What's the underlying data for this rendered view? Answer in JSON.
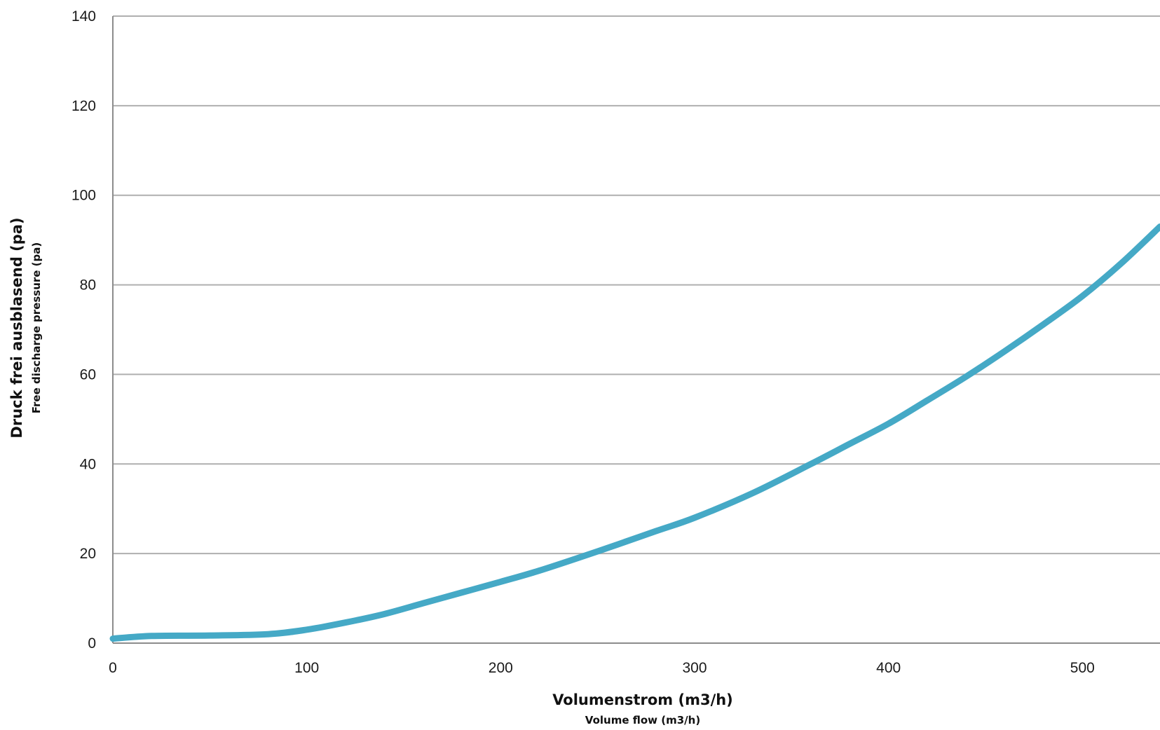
{
  "chart_data": {
    "type": "line",
    "xlabel": "Volumenstrom (m3/h)",
    "xlabel_sub": "Volume flow (m3/h)",
    "ylabel": "Druck frei ausblasend (pa)",
    "ylabel_sub": "Free discharge pressure (pa)",
    "xlim": [
      0,
      540
    ],
    "ylim": [
      0,
      140
    ],
    "x_ticks": [
      "0",
      "100",
      "200",
      "300",
      "400",
      "500"
    ],
    "y_ticks": [
      "0",
      "20",
      "40",
      "60",
      "80",
      "100",
      "120",
      "140"
    ],
    "grid": "horizontal",
    "colors": {
      "line": "#45A9C6",
      "grid": "#AFAFAF",
      "axis": "#8C8C8C"
    },
    "series": [
      {
        "x": [
          0,
          20,
          50,
          80,
          100,
          120,
          140,
          160,
          180,
          200,
          220,
          250,
          280,
          300,
          330,
          360,
          380,
          400,
          420,
          440,
          460,
          480,
          500,
          520,
          540
        ],
        "values": [
          1,
          1.6,
          1.7,
          2,
          3,
          4.6,
          6.5,
          8.9,
          11.3,
          13.7,
          16.2,
          20.5,
          25,
          28,
          33.5,
          40,
          44.5,
          49,
          54.2,
          59.5,
          65.2,
          71.2,
          77.5,
          84.8,
          93
        ]
      }
    ]
  }
}
